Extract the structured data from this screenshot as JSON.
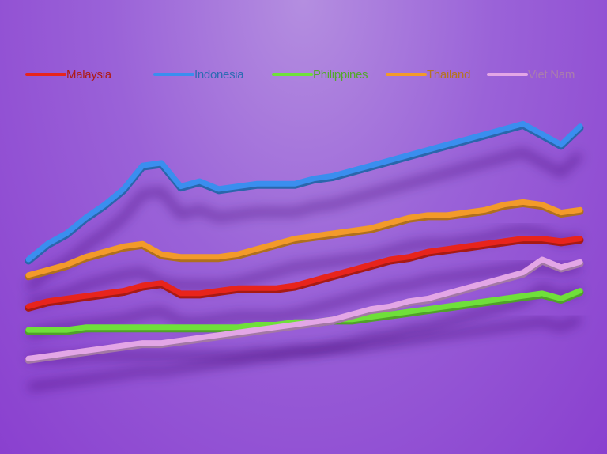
{
  "chart_data": {
    "type": "line",
    "title": "",
    "xlabel": "",
    "ylabel": "",
    "legend_position": "top",
    "grid": false,
    "x": [
      0,
      1,
      2,
      3,
      4,
      5,
      6,
      7,
      8,
      9,
      10,
      11,
      12,
      13,
      14,
      15,
      16,
      17,
      18,
      19,
      20,
      21,
      22,
      23,
      24,
      25,
      26,
      27,
      28,
      29
    ],
    "ylim": [
      0,
      100
    ],
    "series": [
      {
        "name": "Malaysia",
        "color": "#e8241c",
        "values": [
          22,
          24,
          25,
          26,
          27,
          28,
          30,
          31,
          27,
          27,
          28,
          29,
          29,
          29,
          30,
          32,
          34,
          36,
          38,
          40,
          41,
          43,
          44,
          45,
          46,
          47,
          48,
          48,
          47,
          48
        ]
      },
      {
        "name": "Indonesia",
        "color": "#3a8eef",
        "values": [
          40,
          46,
          50,
          56,
          61,
          67,
          76,
          77,
          68,
          70,
          67,
          68,
          69,
          69,
          69,
          71,
          72,
          74,
          76,
          78,
          80,
          82,
          84,
          86,
          88,
          90,
          92,
          88,
          84,
          91
        ]
      },
      {
        "name": "Philippines",
        "color": "#6fe03a",
        "values": [
          13,
          13,
          13,
          14,
          14,
          14,
          14,
          14,
          14,
          14,
          14,
          14,
          15,
          15,
          16,
          16,
          17,
          17,
          18,
          19,
          20,
          21,
          22,
          23,
          24,
          25,
          26,
          27,
          25,
          28
        ]
      },
      {
        "name": "Thailand",
        "color": "#f39a2a",
        "values": [
          34,
          36,
          38,
          41,
          43,
          45,
          46,
          42,
          41,
          41,
          41,
          42,
          44,
          46,
          48,
          49,
          50,
          51,
          52,
          54,
          56,
          57,
          57,
          58,
          59,
          61,
          62,
          61,
          58,
          59
        ]
      },
      {
        "name": "Viet Nam",
        "color": "#e3a6e6",
        "values": [
          2,
          3,
          4,
          5,
          6,
          7,
          8,
          8,
          9,
          10,
          11,
          12,
          13,
          14,
          15,
          16,
          17,
          19,
          21,
          22,
          24,
          25,
          27,
          29,
          31,
          33,
          35,
          40,
          37,
          39
        ]
      }
    ]
  }
}
